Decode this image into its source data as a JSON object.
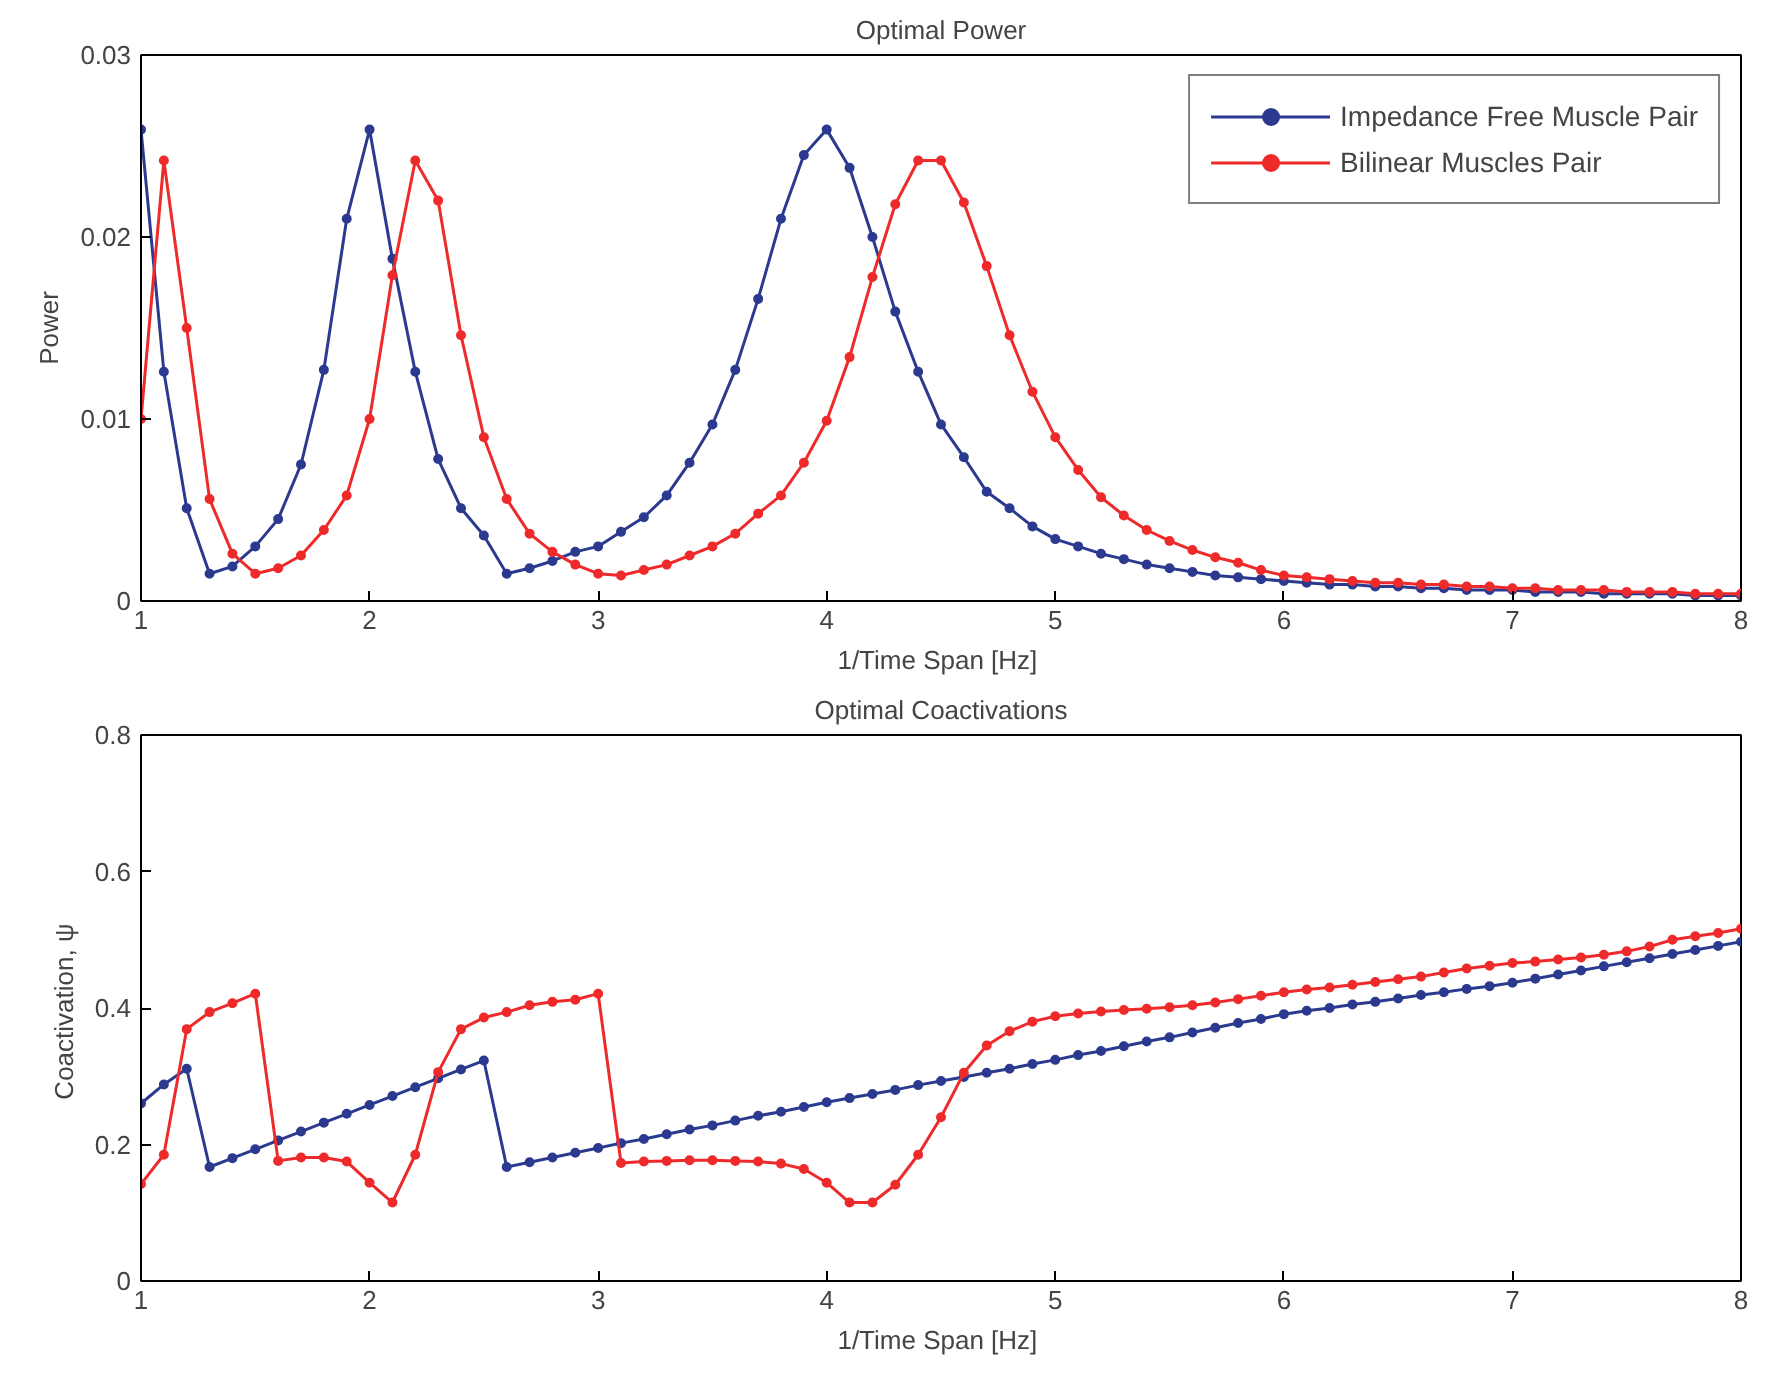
{
  "chart_data": [
    {
      "type": "line",
      "title": "Optimal Power",
      "xlabel": "1/Time Span  [Hz]",
      "ylabel": "Power",
      "marker": "circle",
      "legend": "top right",
      "grid": false,
      "x": [
        1.0,
        1.1,
        1.2,
        1.3,
        1.4,
        1.5,
        1.6,
        1.7,
        1.8,
        1.9,
        2.0,
        2.1,
        2.2,
        2.3,
        2.4,
        2.5,
        2.6,
        2.7,
        2.8,
        2.9,
        3.0,
        3.1,
        3.2,
        3.3,
        3.4,
        3.5,
        3.6,
        3.7,
        3.8,
        3.9,
        4.0,
        4.1,
        4.2,
        4.3,
        4.4,
        4.5,
        4.6,
        4.7,
        4.8,
        4.9,
        5.0,
        5.1,
        5.2,
        5.3,
        5.4,
        5.5,
        5.6,
        5.7,
        5.8,
        5.9,
        6.0,
        6.1,
        6.2,
        6.3,
        6.4,
        6.5,
        6.6,
        6.7,
        6.8,
        6.9,
        7.0,
        7.1,
        7.2,
        7.3,
        7.4,
        7.5,
        7.6,
        7.7,
        7.8,
        7.9,
        8.0
      ],
      "xlim": [
        1,
        8
      ],
      "xticks": [
        1,
        2,
        3,
        4,
        5,
        6,
        7,
        8
      ],
      "ylim": [
        0,
        0.03
      ],
      "yticks": [
        0,
        0.01,
        0.02,
        0.03
      ],
      "series": [
        {
          "name": "Impedance Free Muscle Pair",
          "color": "#2b3a8f",
          "values": [
            0.0259,
            0.0126,
            0.0051,
            0.0015,
            0.0019,
            0.003,
            0.0045,
            0.0075,
            0.0127,
            0.021,
            0.0259,
            0.0188,
            0.0126,
            0.0078,
            0.0051,
            0.0036,
            0.0015,
            0.0018,
            0.0022,
            0.0027,
            0.003,
            0.0038,
            0.0046,
            0.0058,
            0.0076,
            0.0097,
            0.0127,
            0.0166,
            0.021,
            0.0245,
            0.0259,
            0.0238,
            0.02,
            0.0159,
            0.0126,
            0.0097,
            0.0079,
            0.006,
            0.0051,
            0.0041,
            0.0034,
            0.003,
            0.0026,
            0.0023,
            0.002,
            0.0018,
            0.0016,
            0.0014,
            0.0013,
            0.0012,
            0.0011,
            0.001,
            0.0009,
            0.0009,
            0.0008,
            0.0008,
            0.0007,
            0.0007,
            0.0006,
            0.0006,
            0.0006,
            0.0005,
            0.0005,
            0.0005,
            0.0004,
            0.0004,
            0.0004,
            0.0004,
            0.0003,
            0.0003,
            0.0003
          ]
        },
        {
          "name": "Bilinear Muscles Pair",
          "color": "#ee2a2a",
          "values": [
            0.01,
            0.0242,
            0.015,
            0.0056,
            0.0026,
            0.0015,
            0.0018,
            0.0025,
            0.0039,
            0.0058,
            0.01,
            0.0179,
            0.0242,
            0.022,
            0.0146,
            0.009,
            0.0056,
            0.0037,
            0.0027,
            0.002,
            0.0015,
            0.0014,
            0.0017,
            0.002,
            0.0025,
            0.003,
            0.0037,
            0.0048,
            0.0058,
            0.0076,
            0.0099,
            0.0134,
            0.0178,
            0.0218,
            0.0242,
            0.0242,
            0.0219,
            0.0184,
            0.0146,
            0.0115,
            0.009,
            0.0072,
            0.0057,
            0.0047,
            0.0039,
            0.0033,
            0.0028,
            0.0024,
            0.0021,
            0.0017,
            0.0014,
            0.0013,
            0.0012,
            0.0011,
            0.001,
            0.001,
            0.0009,
            0.0009,
            0.0008,
            0.0008,
            0.0007,
            0.0007,
            0.0006,
            0.0006,
            0.0006,
            0.0005,
            0.0005,
            0.0005,
            0.0004,
            0.0004,
            0.0004
          ]
        }
      ]
    },
    {
      "type": "line",
      "title": "Optimal Coactivations",
      "xlabel": "1/Time Span  [Hz]",
      "ylabel": "Coactivation,  ψ",
      "marker": "circle",
      "grid": false,
      "x": [
        1.0,
        1.1,
        1.2,
        1.3,
        1.4,
        1.5,
        1.6,
        1.7,
        1.8,
        1.9,
        2.0,
        2.1,
        2.2,
        2.3,
        2.4,
        2.5,
        2.6,
        2.7,
        2.8,
        2.9,
        3.0,
        3.1,
        3.2,
        3.3,
        3.4,
        3.5,
        3.6,
        3.7,
        3.8,
        3.9,
        4.0,
        4.1,
        4.2,
        4.3,
        4.4,
        4.5,
        4.6,
        4.7,
        4.8,
        4.9,
        5.0,
        5.1,
        5.2,
        5.3,
        5.4,
        5.5,
        5.6,
        5.7,
        5.8,
        5.9,
        6.0,
        6.1,
        6.2,
        6.3,
        6.4,
        6.5,
        6.6,
        6.7,
        6.8,
        6.9,
        7.0,
        7.1,
        7.2,
        7.3,
        7.4,
        7.5,
        7.6,
        7.7,
        7.8,
        7.9,
        8.0
      ],
      "xlim": [
        1,
        8
      ],
      "xticks": [
        1,
        2,
        3,
        4,
        5,
        6,
        7,
        8
      ],
      "ylim": [
        0,
        0.8
      ],
      "yticks": [
        0,
        0.2,
        0.4,
        0.6,
        0.8
      ],
      "series": [
        {
          "color": "#2b3a8f",
          "values": [
            0.26,
            0.288,
            0.311,
            0.167,
            0.18,
            0.193,
            0.206,
            0.219,
            0.232,
            0.245,
            0.258,
            0.271,
            0.284,
            0.297,
            0.31,
            0.323,
            0.167,
            0.174,
            0.181,
            0.188,
            0.195,
            0.202,
            0.208,
            0.215,
            0.222,
            0.228,
            0.235,
            0.242,
            0.248,
            0.255,
            0.262,
            0.268,
            0.274,
            0.28,
            0.287,
            0.293,
            0.299,
            0.305,
            0.311,
            0.318,
            0.324,
            0.331,
            0.337,
            0.344,
            0.351,
            0.357,
            0.364,
            0.371,
            0.378,
            0.384,
            0.391,
            0.396,
            0.4,
            0.405,
            0.409,
            0.414,
            0.419,
            0.423,
            0.428,
            0.432,
            0.437,
            0.443,
            0.449,
            0.455,
            0.461,
            0.467,
            0.473,
            0.479,
            0.485,
            0.491,
            0.497
          ]
        },
        {
          "color": "#ee2a2a",
          "values": [
            0.142,
            0.185,
            0.369,
            0.394,
            0.407,
            0.421,
            0.176,
            0.181,
            0.181,
            0.175,
            0.144,
            0.115,
            0.185,
            0.306,
            0.369,
            0.386,
            0.394,
            0.404,
            0.409,
            0.412,
            0.421,
            0.173,
            0.175,
            0.176,
            0.177,
            0.177,
            0.176,
            0.175,
            0.172,
            0.164,
            0.144,
            0.115,
            0.115,
            0.141,
            0.185,
            0.24,
            0.305,
            0.345,
            0.366,
            0.38,
            0.388,
            0.392,
            0.395,
            0.397,
            0.399,
            0.401,
            0.404,
            0.408,
            0.413,
            0.418,
            0.423,
            0.427,
            0.43,
            0.434,
            0.438,
            0.442,
            0.446,
            0.452,
            0.458,
            0.462,
            0.466,
            0.468,
            0.471,
            0.474,
            0.478,
            0.483,
            0.49,
            0.5,
            0.505,
            0.51,
            0.516
          ]
        }
      ]
    }
  ]
}
